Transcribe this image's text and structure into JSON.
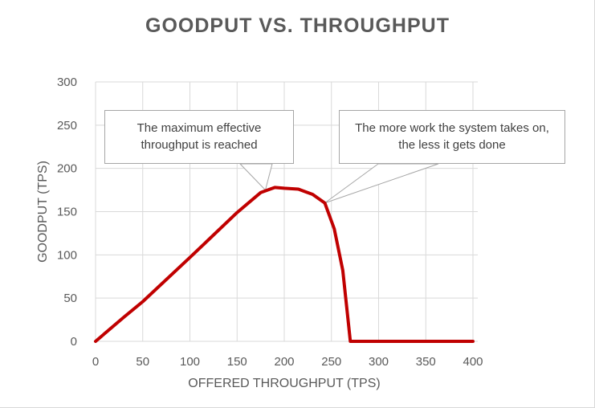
{
  "chart_data": {
    "type": "line",
    "title": "GOODPUT VS. THROUGHPUT",
    "xlabel": "OFFERED THROUGHPUT (TPS)",
    "ylabel": "GOODPUT (TPS)",
    "xlim": [
      0,
      400
    ],
    "ylim": [
      0,
      300
    ],
    "x_ticks": [
      "0",
      "50",
      "100",
      "150",
      "200",
      "250",
      "300",
      "350",
      "400"
    ],
    "y_ticks": [
      "0",
      "50",
      "100",
      "150",
      "200",
      "250",
      "300"
    ],
    "grid": true,
    "series": [
      {
        "color": "#c00000",
        "points": [
          [
            0,
            0
          ],
          [
            30,
            28
          ],
          [
            50,
            46
          ],
          [
            100,
            97
          ],
          [
            150,
            149
          ],
          [
            175,
            172
          ],
          [
            190,
            178
          ],
          [
            200,
            177
          ],
          [
            215,
            176
          ],
          [
            230,
            170
          ],
          [
            243,
            160
          ],
          [
            253,
            130
          ],
          [
            262,
            82
          ],
          [
            270,
            0
          ],
          [
            400,
            0
          ]
        ]
      }
    ],
    "annotations": [
      {
        "text": "The maximum effective\nthroughput is reached",
        "target": [
          180,
          175
        ]
      },
      {
        "text": "The more work the system takes on,\nthe less it gets done",
        "target": [
          243,
          160
        ]
      }
    ]
  }
}
